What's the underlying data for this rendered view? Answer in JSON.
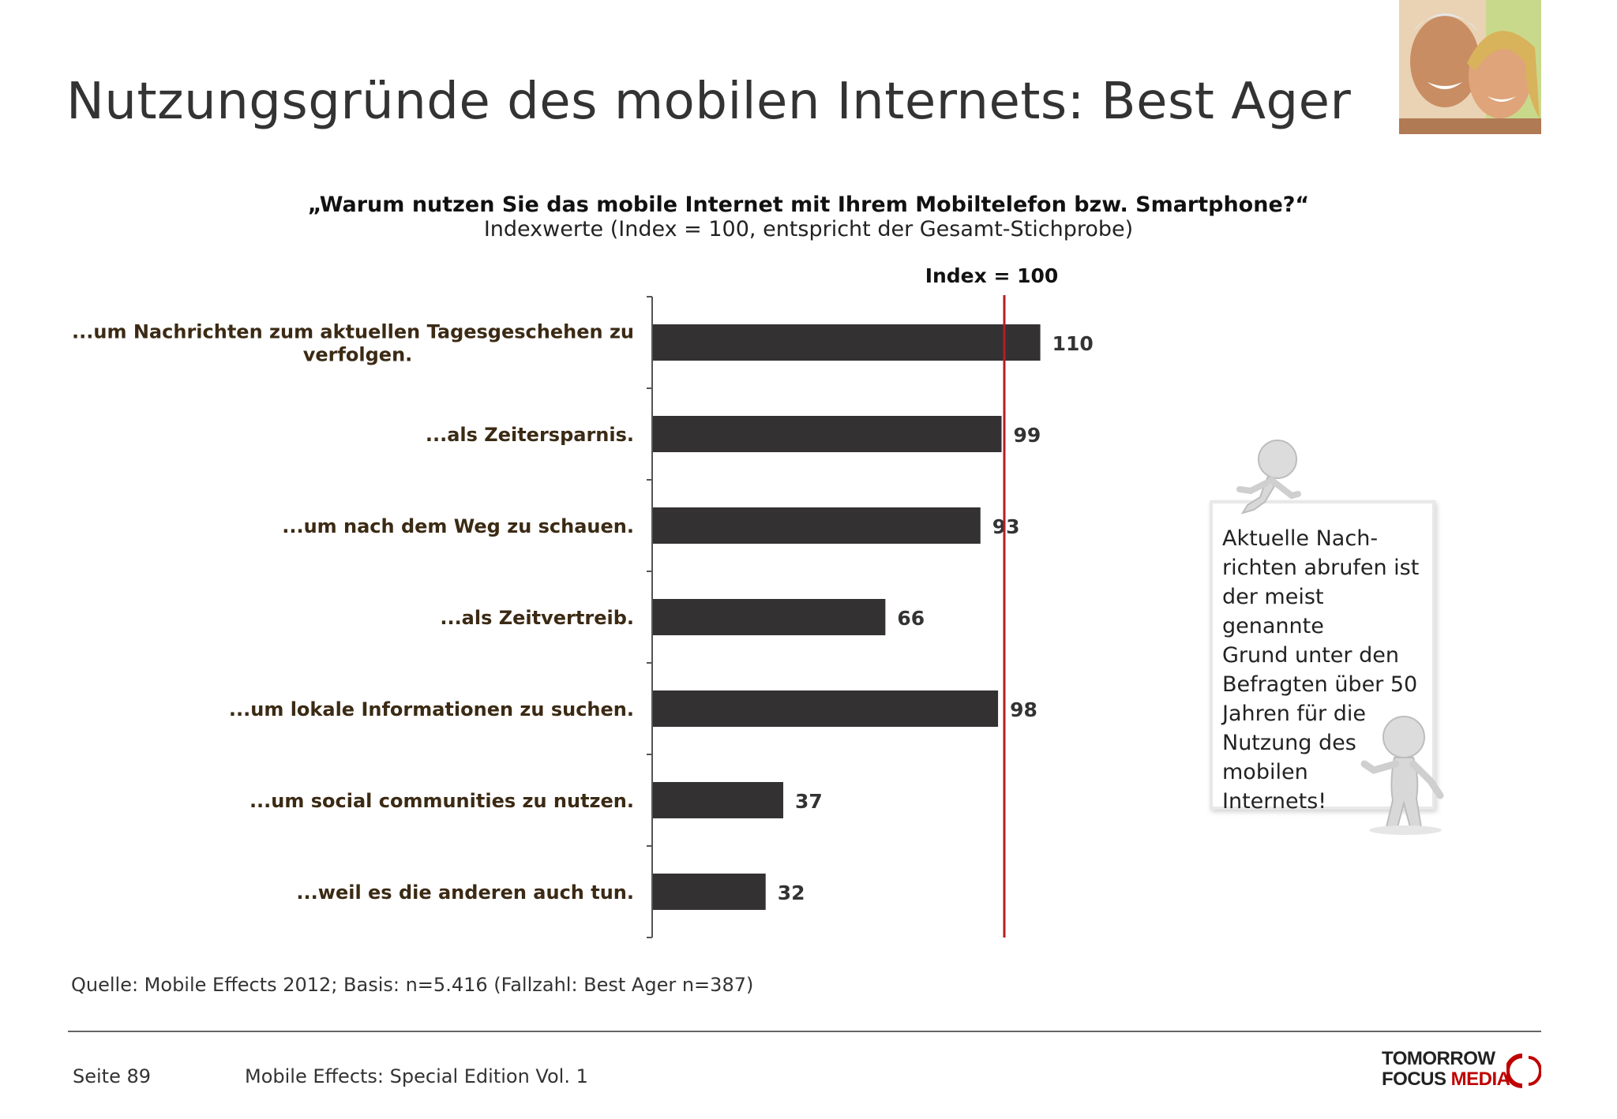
{
  "page": {
    "title": "Nutzungsgründe des mobilen Internets: Best Ager",
    "question": "„Warum nutzen Sie das mobile Internet mit Ihrem Mobiltelefon bzw. Smartphone?“",
    "subtitle": "Indexwerte (Index = 100, entspricht der Gesamt-Stichprobe)",
    "source": "Quelle: Mobile Effects 2012; Basis: n=5.416 (Fallzahl: Best Ager n=387)",
    "page_number": "Seite 89",
    "footer_title": "Mobile Effects: Special Edition Vol. 1"
  },
  "callout": {
    "lines": [
      "Aktuelle Nach-",
      "richten abrufen ist",
      "der meist genannte",
      "Grund unter den",
      "Befragten über 50",
      "Jahren für die",
      "Nutzung des",
      "mobilen",
      "Internets!"
    ]
  },
  "logo": {
    "line1": "TOMORROW",
    "line2a": "FOCUS",
    "line2b": "MEDIA"
  },
  "colors": {
    "bar": "#333132",
    "reference_line": "#b41e23",
    "category_label": "#3b2a14",
    "logo_accent": "#c00000"
  },
  "chart_data": {
    "type": "bar",
    "orientation": "horizontal",
    "categories": [
      [
        "...um Nachrichten zum aktuellen Tagesgeschehen zu",
        "verfolgen."
      ],
      [
        "...als Zeitersparnis."
      ],
      [
        "...um nach dem Weg zu schauen."
      ],
      [
        "...als Zeitvertreib."
      ],
      [
        "...um lokale Informationen zu suchen."
      ],
      [
        "...um social communities zu nutzen."
      ],
      [
        "...weil es die anderen auch tun."
      ]
    ],
    "values": [
      110,
      99,
      93,
      66,
      98,
      37,
      32
    ],
    "data_labels": [
      "110",
      "99",
      "93",
      "66",
      "98",
      "37",
      "32"
    ],
    "reference_line": {
      "value": 100,
      "label": "Index = 100"
    },
    "xlim": [
      0,
      130
    ],
    "grid": false,
    "legend": "none"
  }
}
